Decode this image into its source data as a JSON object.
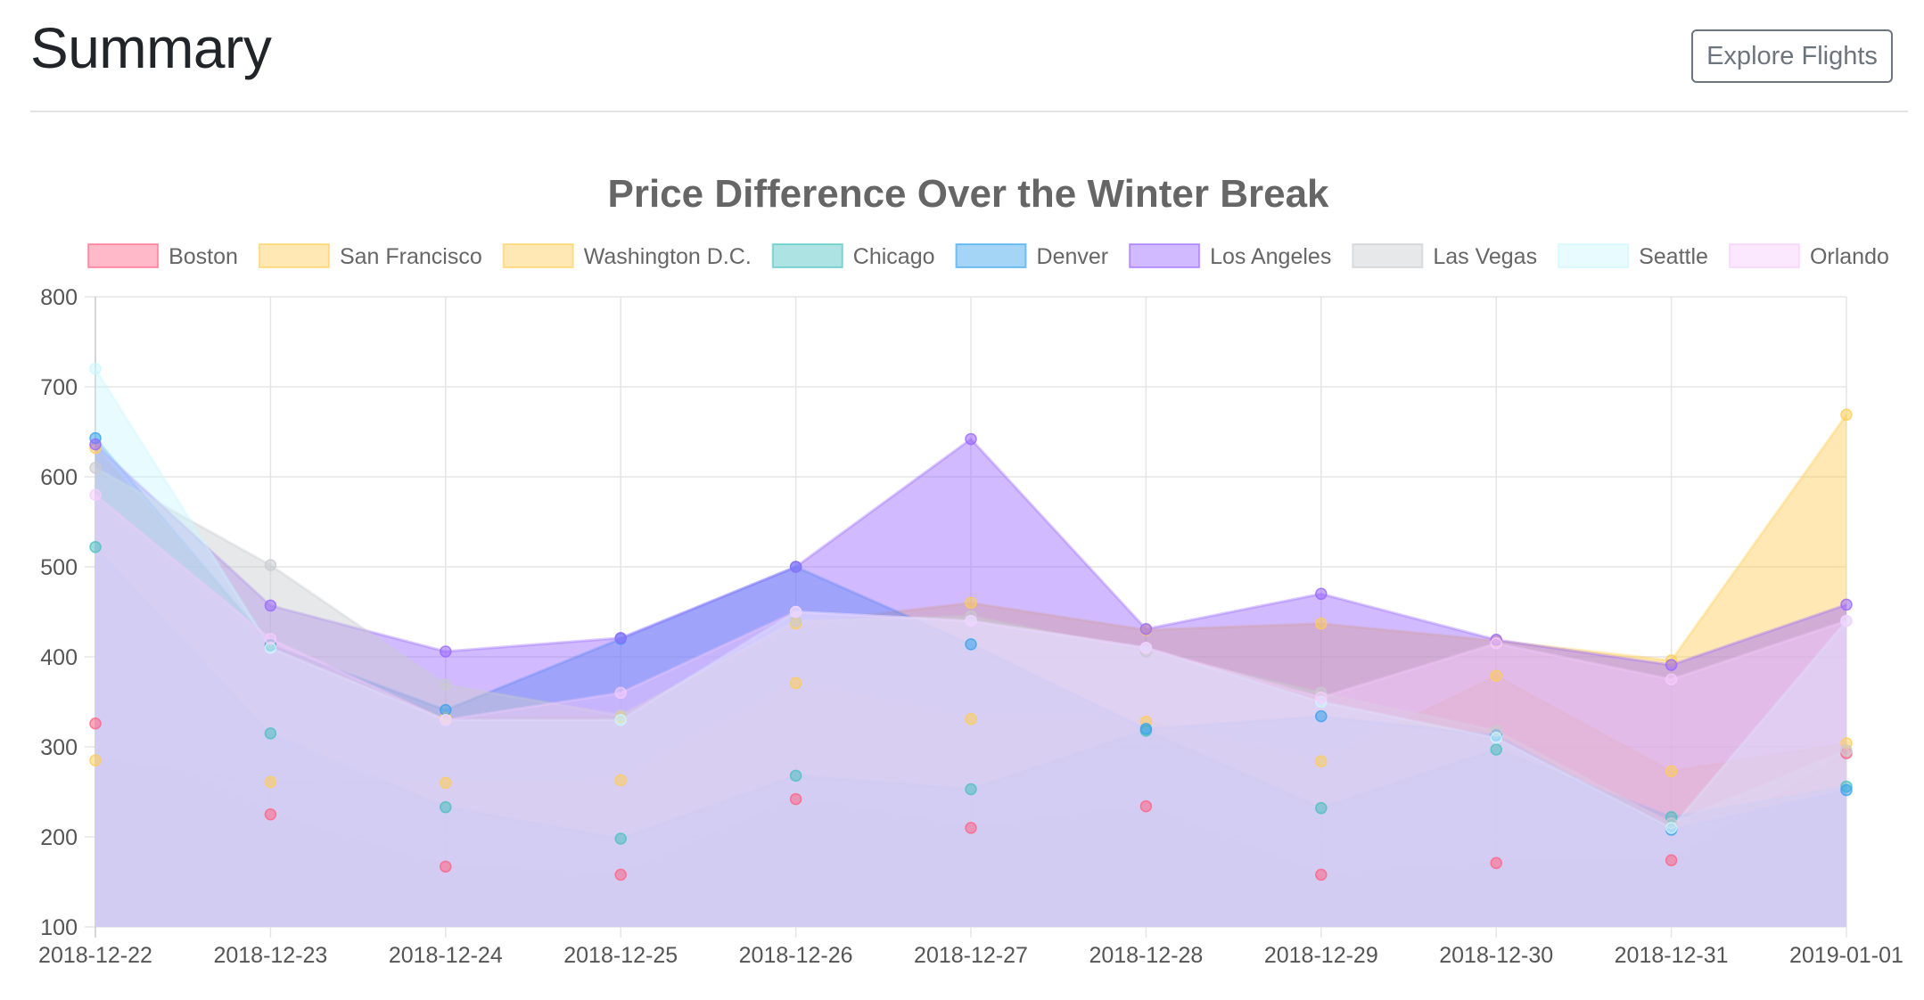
{
  "header": {
    "title": "Summary",
    "explore_button": "Explore Flights"
  },
  "chart_data": {
    "type": "area",
    "title": "Price Difference Over the Winter Break",
    "xlabel": "",
    "ylabel": "",
    "ylim": [
      100,
      800
    ],
    "yticks": [
      100,
      200,
      300,
      400,
      500,
      600,
      700,
      800
    ],
    "grid": true,
    "legend_position": "top",
    "categories": [
      "2018-12-22",
      "2018-12-23",
      "2018-12-24",
      "2018-12-25",
      "2018-12-26",
      "2018-12-27",
      "2018-12-28",
      "2018-12-29",
      "2018-12-30",
      "2018-12-31",
      "2019-01-01"
    ],
    "series": [
      {
        "name": "Boston",
        "color": "#ff6384",
        "values": [
          326,
          225,
          167,
          158,
          242,
          210,
          234,
          158,
          171,
          174,
          293
        ]
      },
      {
        "name": "San Francisco",
        "color": "#ffcd56",
        "values": [
          285,
          261,
          260,
          263,
          371,
          331,
          328,
          284,
          379,
          273,
          304
        ]
      },
      {
        "name": "Washington D.C.",
        "color": "#ffcd56",
        "values": [
          632,
          413,
          332,
          333,
          437,
          460,
          430,
          437,
          418,
          396,
          669
        ]
      },
      {
        "name": "Chicago",
        "color": "#4bc0c0",
        "values": [
          522,
          315,
          233,
          198,
          268,
          253,
          318,
          232,
          297,
          222,
          256
        ]
      },
      {
        "name": "Denver",
        "color": "#36a2eb",
        "values": [
          643,
          413,
          341,
          420,
          500,
          414,
          320,
          334,
          313,
          208,
          252
        ]
      },
      {
        "name": "Los Angeles",
        "color": "#9966ff",
        "values": [
          636,
          457,
          406,
          421,
          500,
          642,
          431,
          470,
          419,
          391,
          458
        ]
      },
      {
        "name": "Las Vegas",
        "color": "#c9cbcf",
        "values": [
          610,
          502,
          369,
          335,
          440,
          445,
          406,
          360,
          318,
          215,
          296
        ]
      },
      {
        "name": "Seattle",
        "color": "#ccf6ff",
        "values": [
          720,
          410,
          330,
          330,
          450,
          440,
          410,
          350,
          310,
          210,
          440
        ]
      },
      {
        "name": "Orlando",
        "color": "#f7ccff",
        "values": [
          580,
          420,
          330,
          360,
          450,
          440,
          410,
          355,
          415,
          375,
          440
        ]
      }
    ]
  }
}
